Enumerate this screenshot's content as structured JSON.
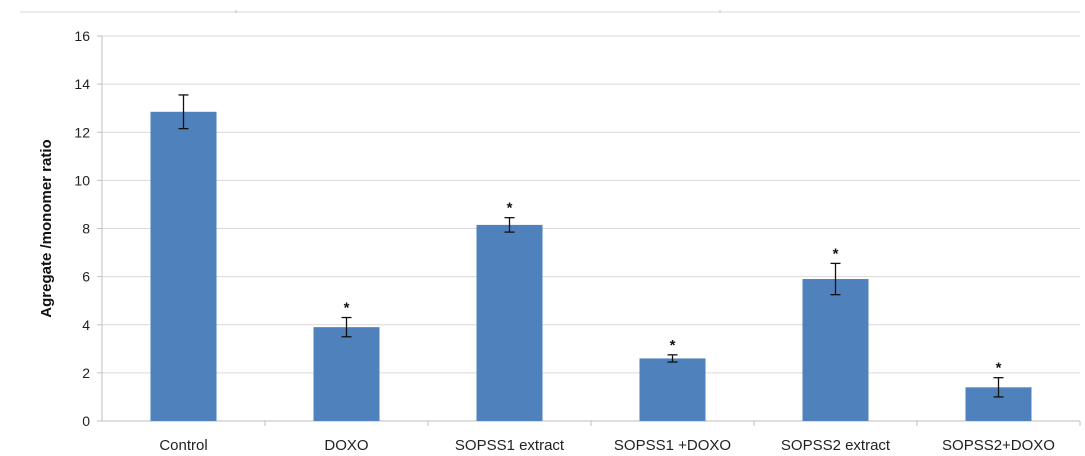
{
  "chart_data": {
    "type": "bar",
    "categories": [
      "Control",
      "DOXO",
      "SOPSS1 extract",
      "SOPSS1 +DOXO",
      "SOPSS2 extract",
      "SOPSS2+DOXO"
    ],
    "values": [
      12.85,
      3.9,
      8.15,
      2.6,
      5.9,
      1.4
    ],
    "errors": [
      0.7,
      0.4,
      0.3,
      0.15,
      0.65,
      0.4
    ],
    "annotations": [
      "",
      "*",
      "*",
      "*",
      "*",
      "*"
    ],
    "ylabel": "Agregate /monomer ratio",
    "xlabel": "",
    "title": "",
    "ylim": [
      0,
      16
    ],
    "yticks": [
      0,
      2,
      4,
      6,
      8,
      10,
      12,
      14,
      16
    ],
    "grid": true,
    "legend": "none",
    "bar_color": "#4f81bd"
  }
}
